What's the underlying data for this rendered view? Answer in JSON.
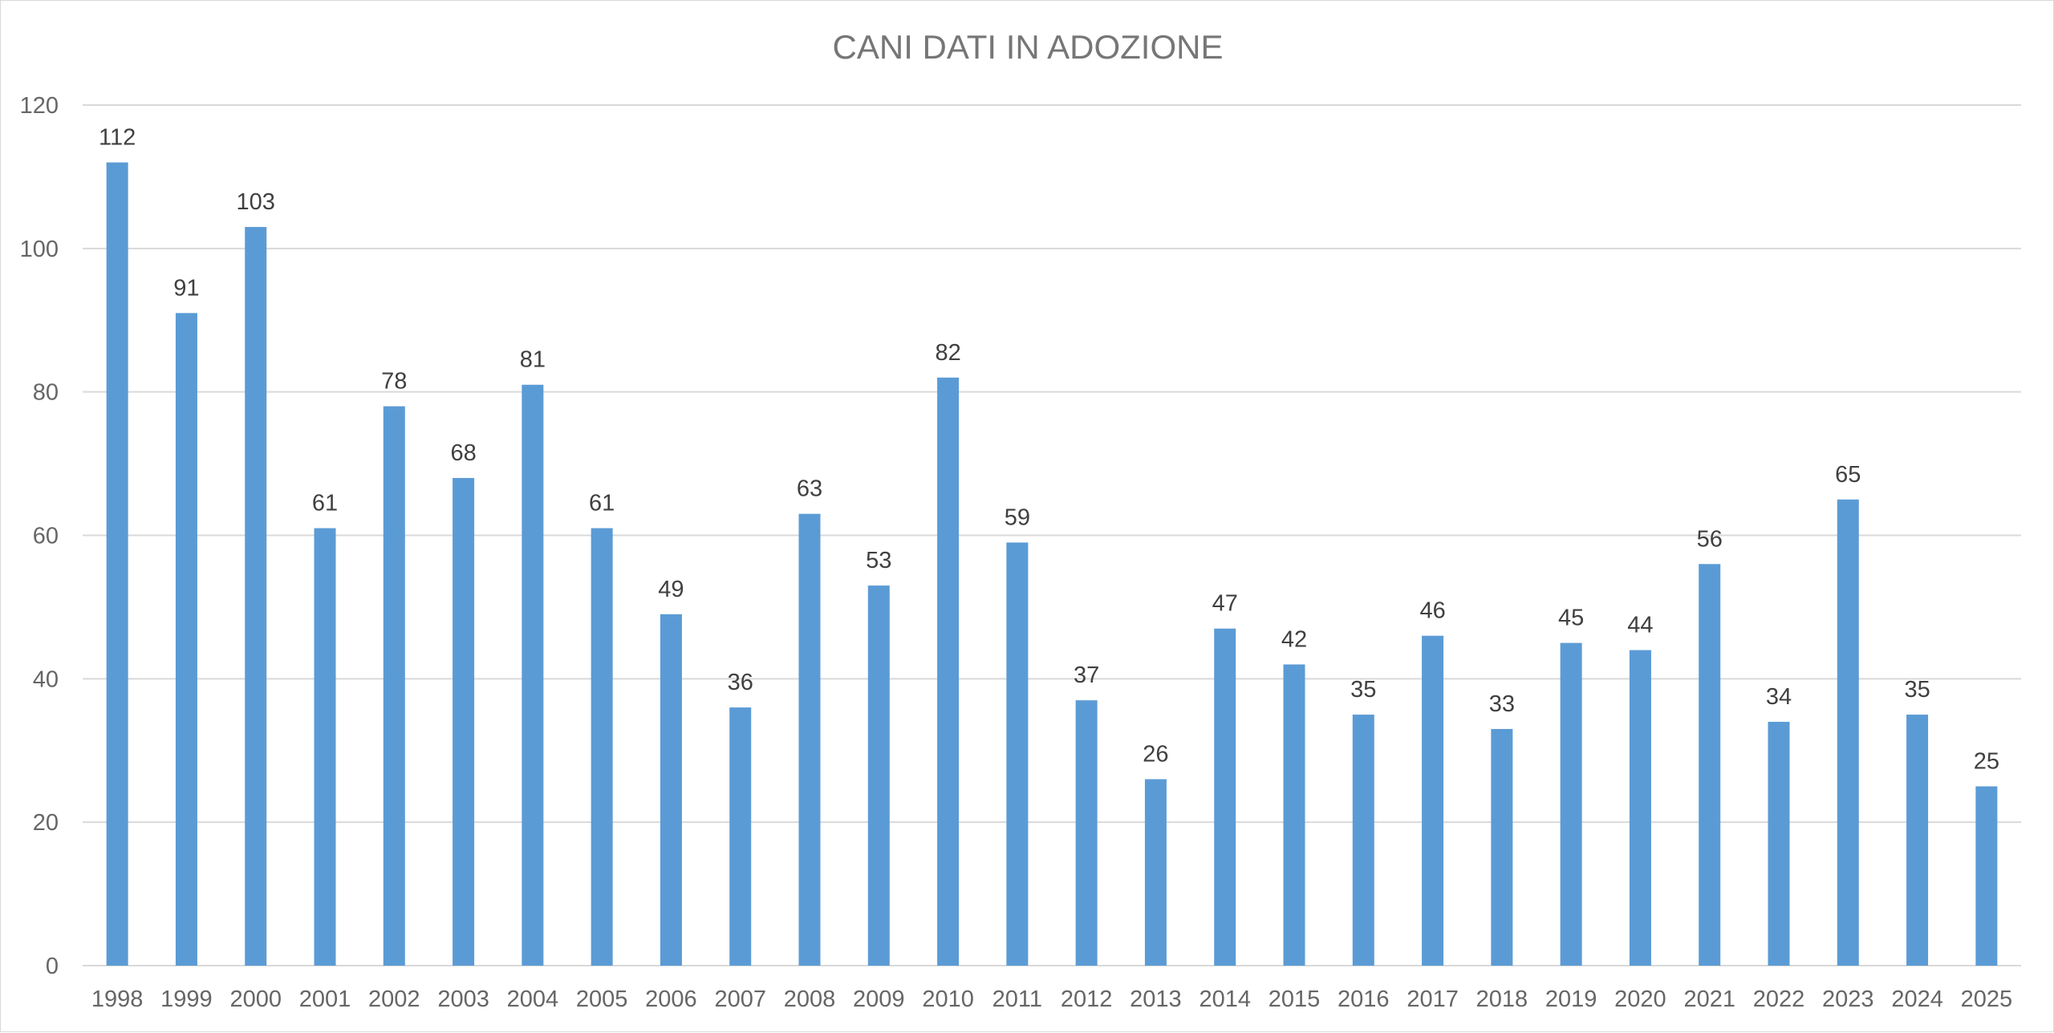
{
  "chart_data": {
    "type": "bar",
    "title": "CANI DATI IN ADOZIONE",
    "xlabel": "",
    "ylabel": "",
    "ylim": [
      0,
      120
    ],
    "yticks": [
      0,
      20,
      40,
      60,
      80,
      100,
      120
    ],
    "grid": true,
    "legend": "none",
    "bar_color": "#5b9bd5",
    "categories": [
      "1998",
      "1999",
      "2000",
      "2001",
      "2002",
      "2003",
      "2004",
      "2005",
      "2006",
      "2007",
      "2008",
      "2009",
      "2010",
      "2011",
      "2012",
      "2013",
      "2014",
      "2015",
      "2016",
      "2017",
      "2018",
      "2019",
      "2020",
      "2021",
      "2022",
      "2023",
      "2024",
      "2025"
    ],
    "values": [
      112,
      91,
      103,
      61,
      78,
      68,
      81,
      61,
      49,
      36,
      63,
      53,
      82,
      59,
      37,
      26,
      47,
      42,
      35,
      46,
      33,
      45,
      44,
      56,
      34,
      65,
      35,
      25
    ]
  }
}
